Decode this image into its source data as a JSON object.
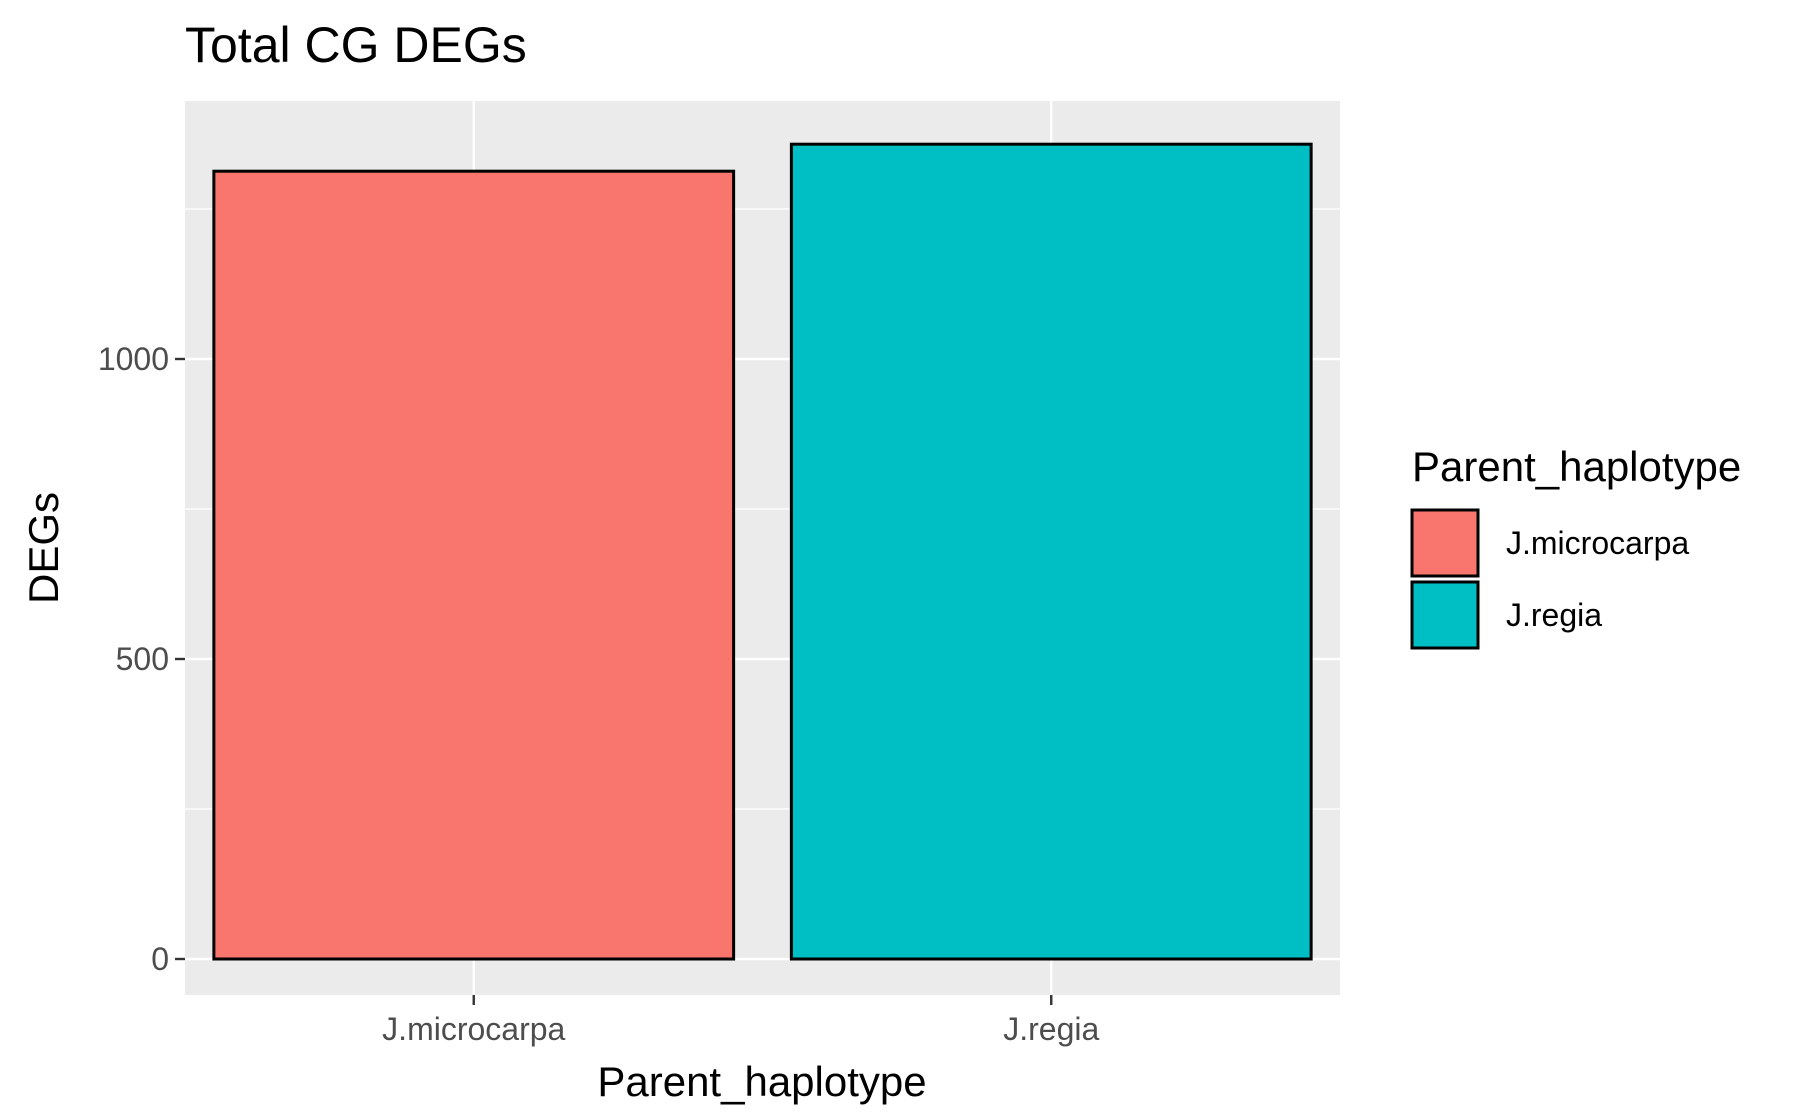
{
  "chart_data": {
    "type": "bar",
    "title": "Total CG DEGs",
    "xlabel": "Parent_haplotype",
    "ylabel": "DEGs",
    "categories": [
      "J.microcarpa",
      "J.regia"
    ],
    "values": [
      1313,
      1358
    ],
    "colors": [
      "#F8766D",
      "#00BFC4"
    ],
    "ylim": [
      -60,
      1430
    ],
    "yticks": [
      0,
      500,
      1000
    ],
    "ytick_labels": [
      "0",
      "500",
      "1000"
    ],
    "grid": true,
    "panel_background": "#EBEBEB",
    "bar_outline": "#000000",
    "legend": {
      "title": "Parent_haplotype",
      "placement": "right",
      "entries": [
        "J.microcarpa",
        "J.regia"
      ]
    }
  }
}
